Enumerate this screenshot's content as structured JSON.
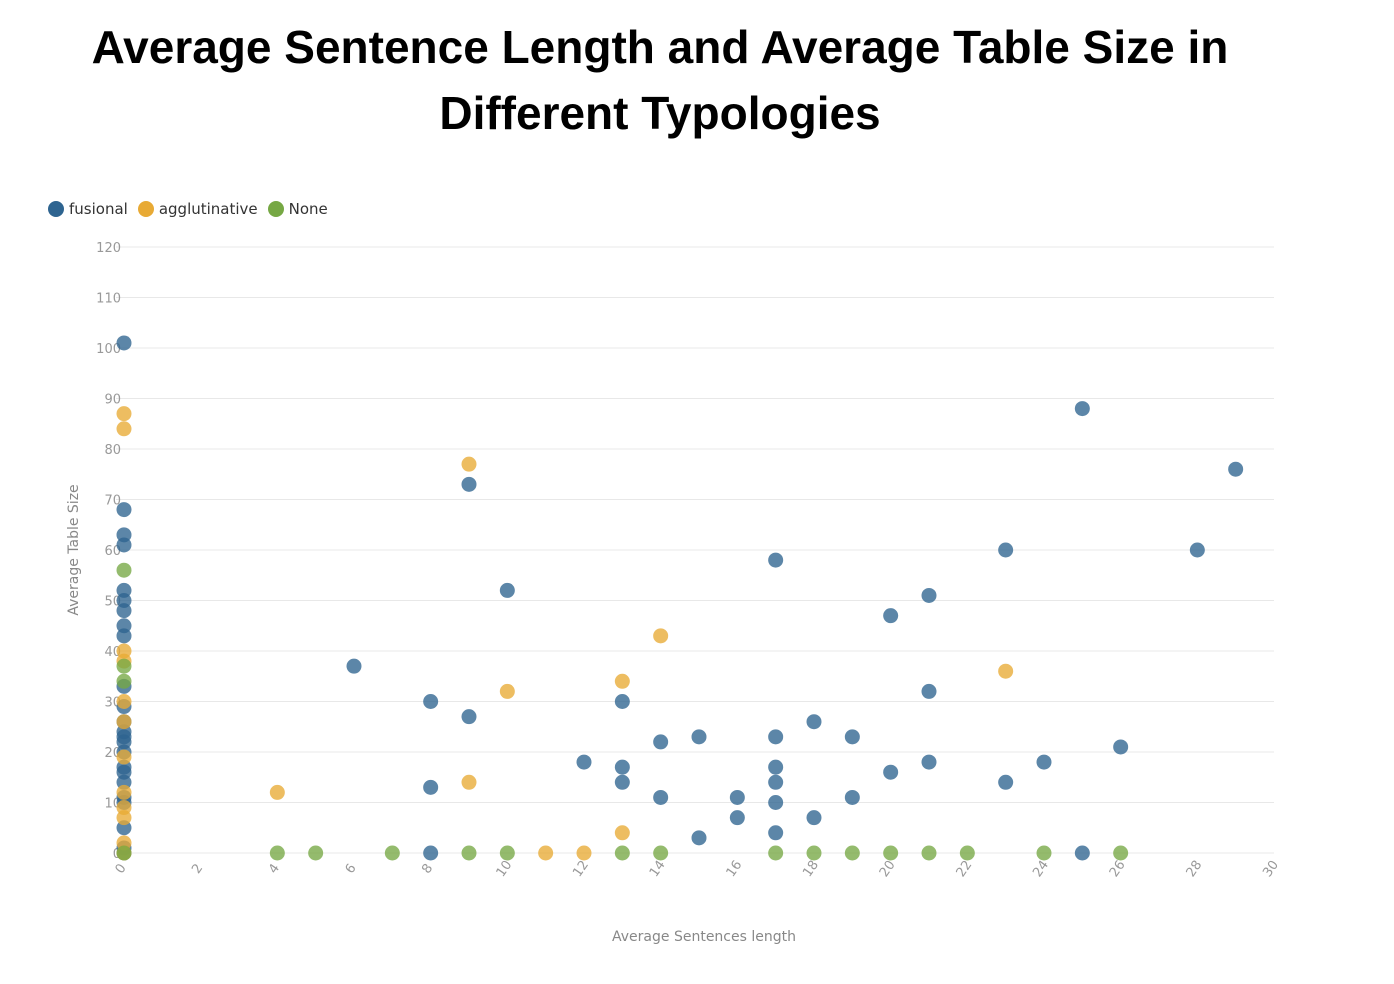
{
  "chart_data": {
    "type": "scatter",
    "title": "Average Sentence Length and Average Table Size in Different Typologies",
    "xlabel": "Average Sentences length",
    "ylabel": "Average Table Size",
    "xlim": [
      0,
      30
    ],
    "ylim": [
      0,
      120
    ],
    "x_ticks": [
      "0",
      "2",
      "4",
      "6",
      "8",
      "10",
      "12",
      "14",
      "16",
      "18",
      "20",
      "22",
      "24",
      "26",
      "28",
      "30"
    ],
    "y_ticks": [
      "0",
      "10",
      "20",
      "30",
      "40",
      "50",
      "60",
      "70",
      "80",
      "90",
      "100",
      "110",
      "120"
    ],
    "grid": "horizontal",
    "legend_position": "top-left",
    "series": [
      {
        "name": "fusional",
        "color": "#2e6490",
        "points": [
          [
            0,
            101
          ],
          [
            0,
            68
          ],
          [
            0,
            63
          ],
          [
            0,
            61
          ],
          [
            0,
            52
          ],
          [
            0,
            50
          ],
          [
            0,
            48
          ],
          [
            0,
            45
          ],
          [
            0,
            43
          ],
          [
            0,
            33
          ],
          [
            0,
            29
          ],
          [
            0,
            26
          ],
          [
            0,
            24
          ],
          [
            0,
            23
          ],
          [
            0,
            22
          ],
          [
            0,
            20
          ],
          [
            0,
            17
          ],
          [
            0,
            16
          ],
          [
            0,
            14
          ],
          [
            0,
            11
          ],
          [
            0,
            10
          ],
          [
            0,
            5
          ],
          [
            0,
            1
          ],
          [
            0,
            0
          ],
          [
            6,
            37
          ],
          [
            8,
            30
          ],
          [
            8,
            13
          ],
          [
            8,
            0
          ],
          [
            9,
            73
          ],
          [
            9,
            27
          ],
          [
            10,
            52
          ],
          [
            12,
            18
          ],
          [
            13,
            30
          ],
          [
            13,
            17
          ],
          [
            13,
            14
          ],
          [
            14,
            22
          ],
          [
            14,
            11
          ],
          [
            15,
            23
          ],
          [
            15,
            3
          ],
          [
            16,
            11
          ],
          [
            16,
            7
          ],
          [
            17,
            58
          ],
          [
            17,
            23
          ],
          [
            17,
            17
          ],
          [
            17,
            14
          ],
          [
            17,
            10
          ],
          [
            17,
            4
          ],
          [
            18,
            26
          ],
          [
            18,
            7
          ],
          [
            19,
            23
          ],
          [
            19,
            11
          ],
          [
            20,
            47
          ],
          [
            20,
            16
          ],
          [
            21,
            51
          ],
          [
            21,
            32
          ],
          [
            21,
            18
          ],
          [
            23,
            60
          ],
          [
            23,
            14
          ],
          [
            24,
            18
          ],
          [
            25,
            88
          ],
          [
            25,
            0
          ],
          [
            26,
            21
          ],
          [
            28,
            60
          ],
          [
            29,
            76
          ]
        ]
      },
      {
        "name": "agglutinative",
        "color": "#e8aa35",
        "points": [
          [
            0,
            87
          ],
          [
            0,
            84
          ],
          [
            0,
            40
          ],
          [
            0,
            38
          ],
          [
            0,
            30
          ],
          [
            0,
            26
          ],
          [
            0,
            19
          ],
          [
            0,
            12
          ],
          [
            0,
            9
          ],
          [
            0,
            7
          ],
          [
            0,
            2
          ],
          [
            0,
            0
          ],
          [
            4,
            12
          ],
          [
            9,
            77
          ],
          [
            9,
            14
          ],
          [
            10,
            32
          ],
          [
            11,
            0
          ],
          [
            12,
            0
          ],
          [
            13,
            34
          ],
          [
            13,
            4
          ],
          [
            14,
            43
          ],
          [
            23,
            36
          ]
        ]
      },
      {
        "name": "None",
        "color": "#76a844",
        "points": [
          [
            0,
            56
          ],
          [
            0,
            37
          ],
          [
            0,
            34
          ],
          [
            0,
            0
          ],
          [
            4,
            0
          ],
          [
            5,
            0
          ],
          [
            7,
            0
          ],
          [
            9,
            0
          ],
          [
            10,
            0
          ],
          [
            13,
            0
          ],
          [
            14,
            0
          ],
          [
            17,
            0
          ],
          [
            18,
            0
          ],
          [
            19,
            0
          ],
          [
            20,
            0
          ],
          [
            21,
            0
          ],
          [
            22,
            0
          ],
          [
            24,
            0
          ],
          [
            26,
            0
          ]
        ]
      }
    ]
  }
}
